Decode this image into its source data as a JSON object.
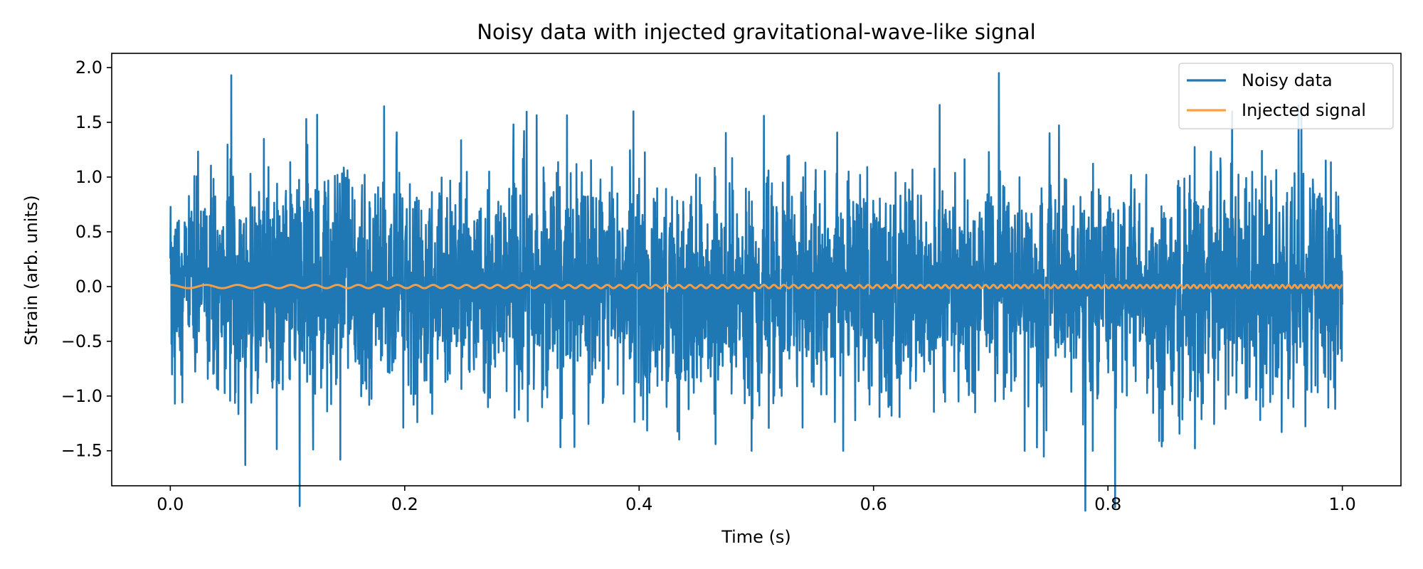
{
  "chart_data": {
    "type": "line",
    "title": "Noisy data with injected gravitational-wave-like signal",
    "xlabel": "Time (s)",
    "ylabel": "Strain (arb. units)",
    "xlim": [
      -0.05,
      1.05
    ],
    "ylim": [
      -1.82,
      2.13
    ],
    "xticks": [
      0.0,
      0.2,
      0.4,
      0.6,
      0.8,
      1.0
    ],
    "xtick_labels": [
      "0.0",
      "0.2",
      "0.4",
      "0.6",
      "0.8",
      "1.0"
    ],
    "yticks": [
      -1.5,
      -1.0,
      -0.5,
      0.0,
      0.5,
      1.0,
      1.5,
      2.0
    ],
    "ytick_labels": [
      "−1.5",
      "−1.0",
      "−0.5",
      "0.0",
      "0.5",
      "1.0",
      "1.5",
      "2.0"
    ],
    "grid": false,
    "legend_position": "top-right",
    "series": [
      {
        "name": "Noisy data",
        "color": "#1f77b4",
        "noise_std": 0.5,
        "x_range": [
          0.0,
          1.0
        ],
        "approx_peaks": [
          {
            "x": 0.052,
            "y": 1.93
          },
          {
            "x": 0.707,
            "y": 1.95
          },
          {
            "x": 0.064,
            "y": -1.63
          },
          {
            "x": 0.395,
            "y": 1.6
          },
          {
            "x": 0.906,
            "y": 1.6
          },
          {
            "x": 0.965,
            "y": 1.58
          },
          {
            "x": 0.116,
            "y": 1.53
          },
          {
            "x": 0.496,
            "y": -1.5
          },
          {
            "x": 0.574,
            "y": -1.5
          },
          {
            "x": 0.729,
            "y": -1.5
          },
          {
            "x": 0.787,
            "y": -1.5
          },
          {
            "x": 0.846,
            "y": -1.46
          }
        ]
      },
      {
        "name": "Injected signal",
        "color": "#ff9f40",
        "amplitude": 0.015,
        "freq_start_hz": 30,
        "freq_end_hz": 200,
        "x_range": [
          0.0,
          1.0
        ]
      }
    ]
  }
}
